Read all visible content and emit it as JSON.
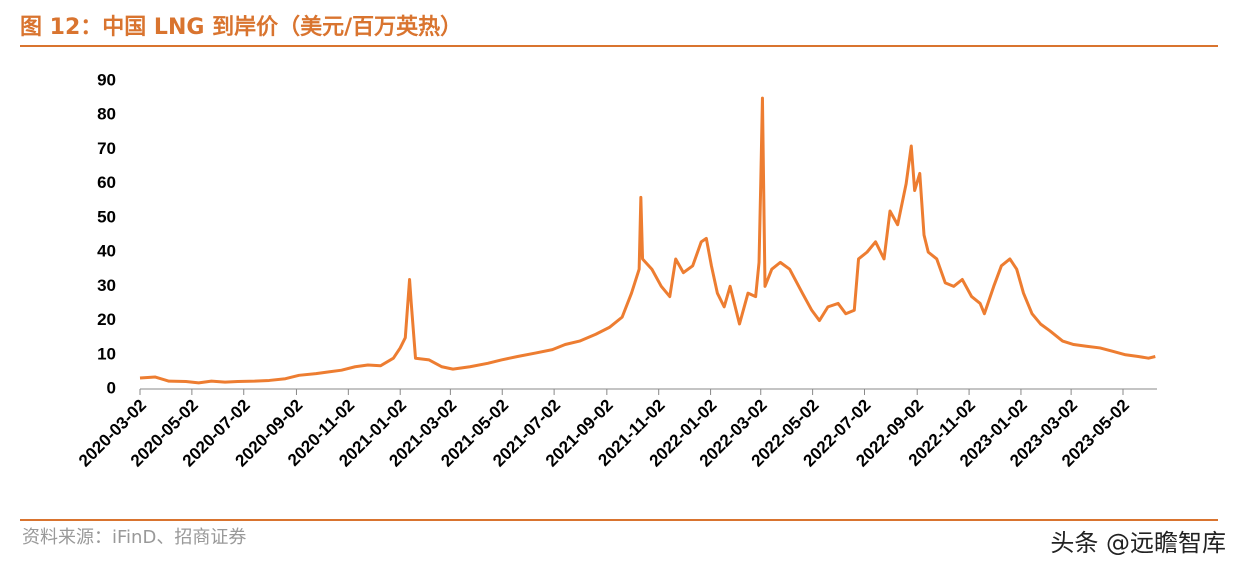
{
  "chart_data": {
    "type": "line",
    "title": "图 12：中国 LNG 到岸价（美元/百万英热）",
    "source": "资料来源：iFinD、招商证券",
    "watermark": "头条 @远瞻智库",
    "xlim": [
      "2020-03-02",
      "2023-06-11"
    ],
    "xticks": [
      "2020-03-02",
      "2020-05-02",
      "2020-07-02",
      "2020-09-02",
      "2020-11-02",
      "2021-01-02",
      "2021-03-02",
      "2021-05-02",
      "2021-07-02",
      "2021-09-02",
      "2021-11-02",
      "2022-01-02",
      "2022-03-02",
      "2022-05-02",
      "2022-07-02",
      "2022-09-02",
      "2022-11-02",
      "2023-01-02",
      "2023-03-02",
      "2023-05-02"
    ],
    "ylim": [
      0,
      90
    ],
    "yticks": [
      0,
      10,
      20,
      30,
      40,
      50,
      60,
      70,
      80,
      90
    ],
    "x": [
      "2020-03-02",
      "2020-03-20",
      "2020-04-05",
      "2020-04-25",
      "2020-05-10",
      "2020-05-25",
      "2020-06-10",
      "2020-06-25",
      "2020-07-15",
      "2020-08-01",
      "2020-08-20",
      "2020-09-05",
      "2020-09-25",
      "2020-10-10",
      "2020-10-25",
      "2020-11-10",
      "2020-11-25",
      "2020-12-10",
      "2020-12-25",
      "2021-01-02",
      "2021-01-08",
      "2021-01-13",
      "2021-01-15",
      "2021-01-20",
      "2021-02-05",
      "2021-02-20",
      "2021-03-05",
      "2021-03-25",
      "2021-04-15",
      "2021-05-01",
      "2021-05-20",
      "2021-06-10",
      "2021-06-30",
      "2021-07-15",
      "2021-08-01",
      "2021-08-20",
      "2021-09-05",
      "2021-09-20",
      "2021-10-01",
      "2021-10-10",
      "2021-10-12",
      "2021-10-14",
      "2021-10-25",
      "2021-11-05",
      "2021-11-15",
      "2021-11-22",
      "2021-12-01",
      "2021-12-12",
      "2021-12-22",
      "2021-12-28",
      "2022-01-03",
      "2022-01-10",
      "2022-01-18",
      "2022-01-25",
      "2022-02-05",
      "2022-02-15",
      "2022-02-24",
      "2022-02-28",
      "2022-03-02",
      "2022-03-04",
      "2022-03-07",
      "2022-03-15",
      "2022-03-25",
      "2022-04-05",
      "2022-04-20",
      "2022-05-01",
      "2022-05-10",
      "2022-05-20",
      "2022-06-01",
      "2022-06-10",
      "2022-06-20",
      "2022-06-25",
      "2022-07-05",
      "2022-07-15",
      "2022-07-25",
      "2022-08-01",
      "2022-08-10",
      "2022-08-20",
      "2022-08-26",
      "2022-08-30",
      "2022-09-05",
      "2022-09-10",
      "2022-09-15",
      "2022-09-25",
      "2022-10-05",
      "2022-10-15",
      "2022-10-25",
      "2022-11-05",
      "2022-11-15",
      "2022-11-20",
      "2022-12-01",
      "2022-12-10",
      "2022-12-20",
      "2022-12-28",
      "2023-01-05",
      "2023-01-15",
      "2023-01-25",
      "2023-02-05",
      "2023-02-20",
      "2023-03-05",
      "2023-03-20",
      "2023-04-05",
      "2023-04-20",
      "2023-05-05",
      "2023-05-20",
      "2023-06-01",
      "2023-06-09"
    ],
    "series": [
      {
        "color": "#ed7d31",
        "values": [
          3.2,
          3.5,
          2.3,
          2.2,
          1.8,
          2.3,
          2.0,
          2.2,
          2.3,
          2.5,
          3.0,
          4.0,
          4.5,
          5.0,
          5.5,
          6.5,
          7.0,
          6.8,
          9.0,
          12,
          15,
          32,
          25,
          9,
          8.5,
          6.5,
          5.8,
          6.5,
          7.5,
          8.5,
          9.5,
          10.5,
          11.5,
          13,
          14,
          16,
          18,
          21,
          28,
          35,
          56,
          38,
          35,
          30,
          27,
          38,
          34,
          36,
          43,
          44,
          36,
          28,
          24,
          30,
          19,
          28,
          27,
          37,
          60,
          85,
          30,
          35,
          37,
          35,
          28,
          23,
          20,
          24,
          25,
          22,
          23,
          38,
          40,
          43,
          38,
          52,
          48,
          60,
          71,
          58,
          63,
          45,
          40,
          38,
          31,
          30,
          32,
          27,
          25,
          22,
          30,
          36,
          38,
          35,
          28,
          22,
          19,
          17,
          14,
          13,
          12.5,
          12,
          11,
          10,
          9.5,
          9,
          9.5
        ]
      }
    ]
  }
}
